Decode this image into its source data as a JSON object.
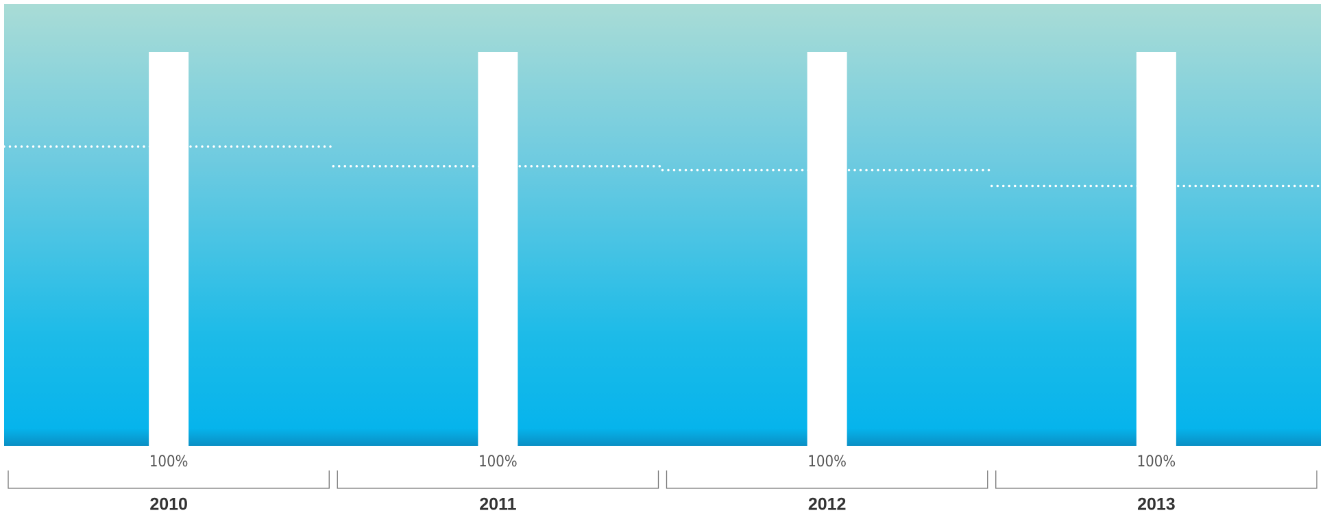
{
  "chart_data": {
    "type": "bar",
    "categories": [
      "2010",
      "2011",
      "2012",
      "2013"
    ],
    "series": [
      {
        "color": "#ffffff",
        "values": [
          100,
          100,
          100,
          100
        ],
        "value_labels": [
          "100%",
          "100%",
          "100%",
          "100%"
        ]
      },
      {
        "color": "#ffffff",
        "style": "dotted",
        "values": [
          76,
          71,
          70,
          66
        ]
      }
    ],
    "ylim": [
      0,
      100
    ]
  }
}
